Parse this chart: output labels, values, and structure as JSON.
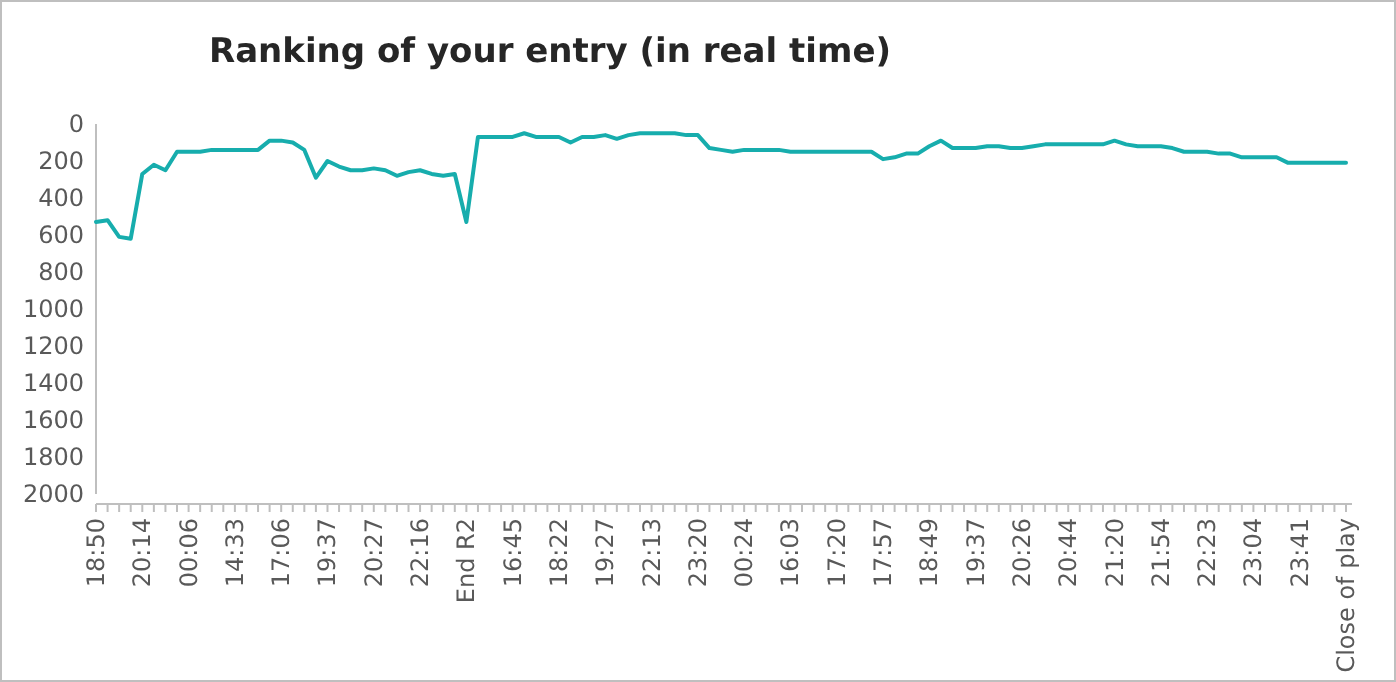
{
  "chart_data": {
    "type": "line",
    "title": "Ranking of your entry (in real time)",
    "categories": [
      "18:50",
      null,
      null,
      null,
      "20:14",
      null,
      null,
      null,
      "00:06",
      null,
      null,
      null,
      "14:33",
      null,
      null,
      null,
      "17:06",
      null,
      null,
      null,
      "19:37",
      null,
      null,
      null,
      "20:27",
      null,
      null,
      null,
      "22:16",
      null,
      null,
      null,
      "End R2",
      null,
      null,
      null,
      "16:45",
      null,
      null,
      null,
      "18:22",
      null,
      null,
      null,
      "19:27",
      null,
      null,
      null,
      "22:13",
      null,
      null,
      null,
      "23:20",
      null,
      null,
      null,
      "00:24",
      null,
      null,
      null,
      "16:03",
      null,
      null,
      null,
      "17:20",
      null,
      null,
      null,
      "17:57",
      null,
      null,
      null,
      "18:49",
      null,
      null,
      null,
      "19:37",
      null,
      null,
      null,
      "20:26",
      null,
      null,
      null,
      "20:44",
      null,
      null,
      null,
      "21:20",
      null,
      null,
      null,
      "21:54",
      null,
      null,
      null,
      "22:23",
      null,
      null,
      null,
      "23:04",
      null,
      null,
      null,
      "23:41",
      null,
      null,
      null,
      "Close of play"
    ],
    "series": [
      {
        "color": "#17adad",
        "values": [
          530,
          520,
          610,
          620,
          270,
          220,
          250,
          150,
          150,
          150,
          140,
          140,
          140,
          140,
          140,
          90,
          90,
          100,
          140,
          290,
          200,
          230,
          250,
          250,
          240,
          250,
          280,
          260,
          250,
          270,
          280,
          270,
          530,
          70,
          70,
          70,
          70,
          50,
          70,
          70,
          70,
          100,
          70,
          70,
          60,
          80,
          60,
          50,
          50,
          50,
          50,
          60,
          60,
          130,
          140,
          150,
          140,
          140,
          140,
          140,
          150,
          150,
          150,
          150,
          150,
          150,
          150,
          150,
          190,
          180,
          160,
          160,
          120,
          90,
          130,
          130,
          130,
          120,
          120,
          130,
          130,
          120,
          110,
          110,
          110,
          110,
          110,
          110,
          90,
          110,
          120,
          120,
          120,
          130,
          150,
          150,
          150,
          160,
          160,
          180,
          180,
          180,
          180,
          210,
          210,
          210,
          210,
          210,
          210
        ]
      }
    ],
    "ylim": [
      2000,
      0
    ],
    "yticks": [
      0,
      200,
      400,
      600,
      800,
      1000,
      1200,
      1400,
      1600,
      1800,
      2000
    ],
    "grid": false,
    "marker": "none",
    "line_style": "solid"
  }
}
